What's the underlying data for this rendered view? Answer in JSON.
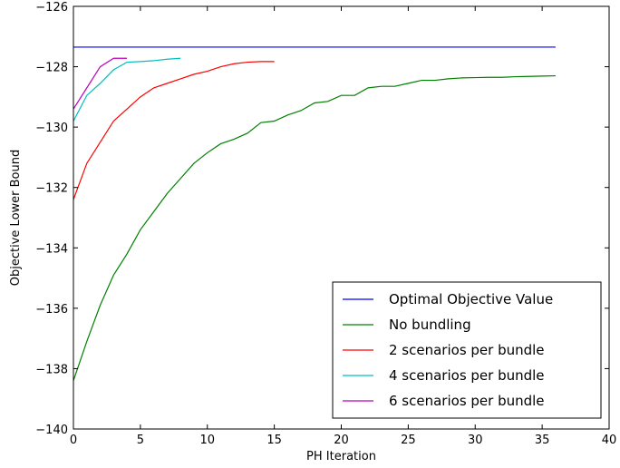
{
  "chart_data": {
    "type": "line",
    "title": "",
    "xlabel": "PH Iteration",
    "ylabel": "Objective Lower Bound",
    "xlim": [
      0,
      40
    ],
    "ylim": [
      -140,
      -126
    ],
    "xticks": [
      0,
      5,
      10,
      15,
      20,
      25,
      30,
      35,
      40
    ],
    "yticks": [
      -140,
      -138,
      -136,
      -134,
      -132,
      -130,
      -128,
      -126
    ],
    "grid": false,
    "legend_position": "lower-right",
    "series": [
      {
        "name": "Optimal Objective Value",
        "color": "#0000ff",
        "x": [
          0,
          36
        ],
        "y": [
          -127.35,
          -127.35
        ]
      },
      {
        "name": "No bundling",
        "color": "#008000",
        "x": [
          0,
          1,
          2,
          3,
          4,
          5,
          6,
          7,
          8,
          9,
          10,
          11,
          12,
          13,
          14,
          15,
          16,
          17,
          18,
          19,
          20,
          21,
          22,
          23,
          24,
          25,
          26,
          27,
          28,
          29,
          30,
          31,
          32,
          33,
          34,
          35,
          36
        ],
        "y": [
          -138.4,
          -137.1,
          -135.9,
          -134.9,
          -134.2,
          -133.4,
          -132.8,
          -132.2,
          -131.7,
          -131.2,
          -130.85,
          -130.55,
          -130.4,
          -130.2,
          -129.85,
          -129.8,
          -129.6,
          -129.45,
          -129.2,
          -129.15,
          -128.95,
          -128.95,
          -128.7,
          -128.65,
          -128.65,
          -128.55,
          -128.45,
          -128.45,
          -128.4,
          -128.37,
          -128.36,
          -128.35,
          -128.35,
          -128.33,
          -128.32,
          -128.31,
          -128.3
        ]
      },
      {
        "name": "2 scenarios per bundle",
        "color": "#ff0000",
        "x": [
          0,
          1,
          2,
          3,
          4,
          5,
          6,
          7,
          8,
          9,
          10,
          11,
          12,
          13,
          14,
          15
        ],
        "y": [
          -132.4,
          -131.2,
          -130.5,
          -129.8,
          -129.4,
          -129.0,
          -128.7,
          -128.55,
          -128.4,
          -128.25,
          -128.15,
          -128.0,
          -127.9,
          -127.85,
          -127.83,
          -127.83
        ]
      },
      {
        "name": "4 scenarios per bundle",
        "color": "#00bfbf",
        "x": [
          0,
          1,
          2,
          3,
          4,
          5,
          6,
          7,
          8
        ],
        "y": [
          -129.8,
          -128.95,
          -128.55,
          -128.1,
          -127.85,
          -127.83,
          -127.8,
          -127.75,
          -127.72
        ]
      },
      {
        "name": "6 scenarios per bundle",
        "color": "#bf00bf",
        "x": [
          0,
          1,
          2,
          3,
          4
        ],
        "y": [
          -129.4,
          -128.7,
          -128.0,
          -127.72,
          -127.72
        ]
      }
    ]
  }
}
